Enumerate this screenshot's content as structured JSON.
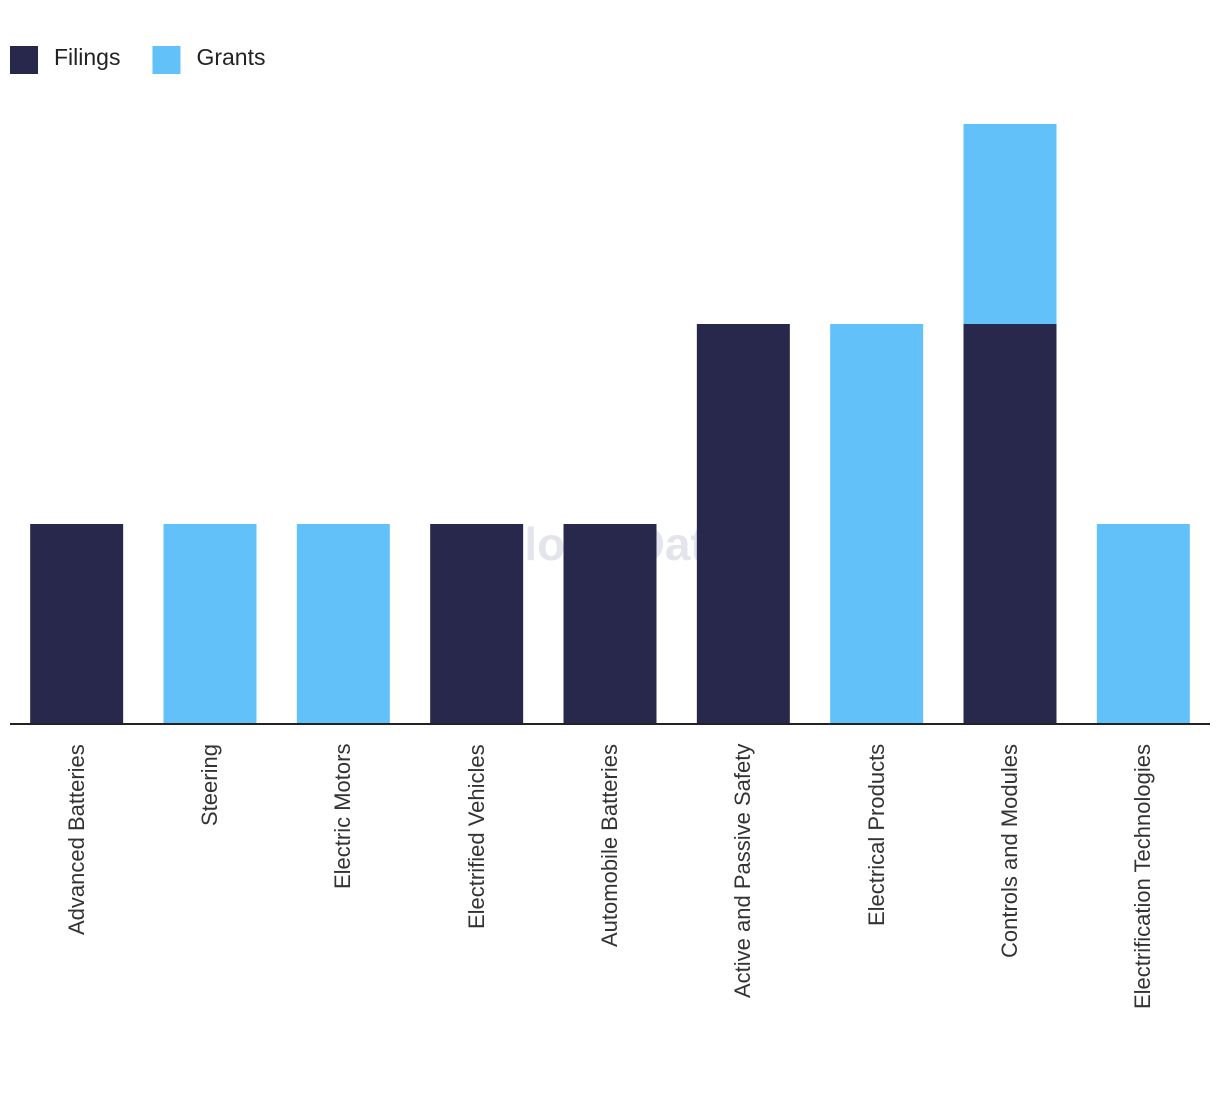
{
  "chart_data": {
    "type": "stacked_bar",
    "watermark": "GlobalData",
    "categories": [
      "Advanced Batteries",
      "Steering",
      "Electric Motors",
      "Electrified Vehicles",
      "Automobile Batteries",
      "Active and Passive Safety",
      "Electrical Products",
      "Controls and Modules",
      "Electrification Technologies"
    ],
    "series": [
      {
        "name": "Filings",
        "color": "#27284b",
        "values": [
          1,
          0,
          0,
          1,
          1,
          2,
          0,
          2,
          0
        ]
      },
      {
        "name": "Grants",
        "color": "#62c1f9",
        "values": [
          0,
          1,
          1,
          0,
          0,
          0,
          2,
          1,
          1
        ]
      }
    ],
    "ylim": [
      0,
      3
    ]
  }
}
